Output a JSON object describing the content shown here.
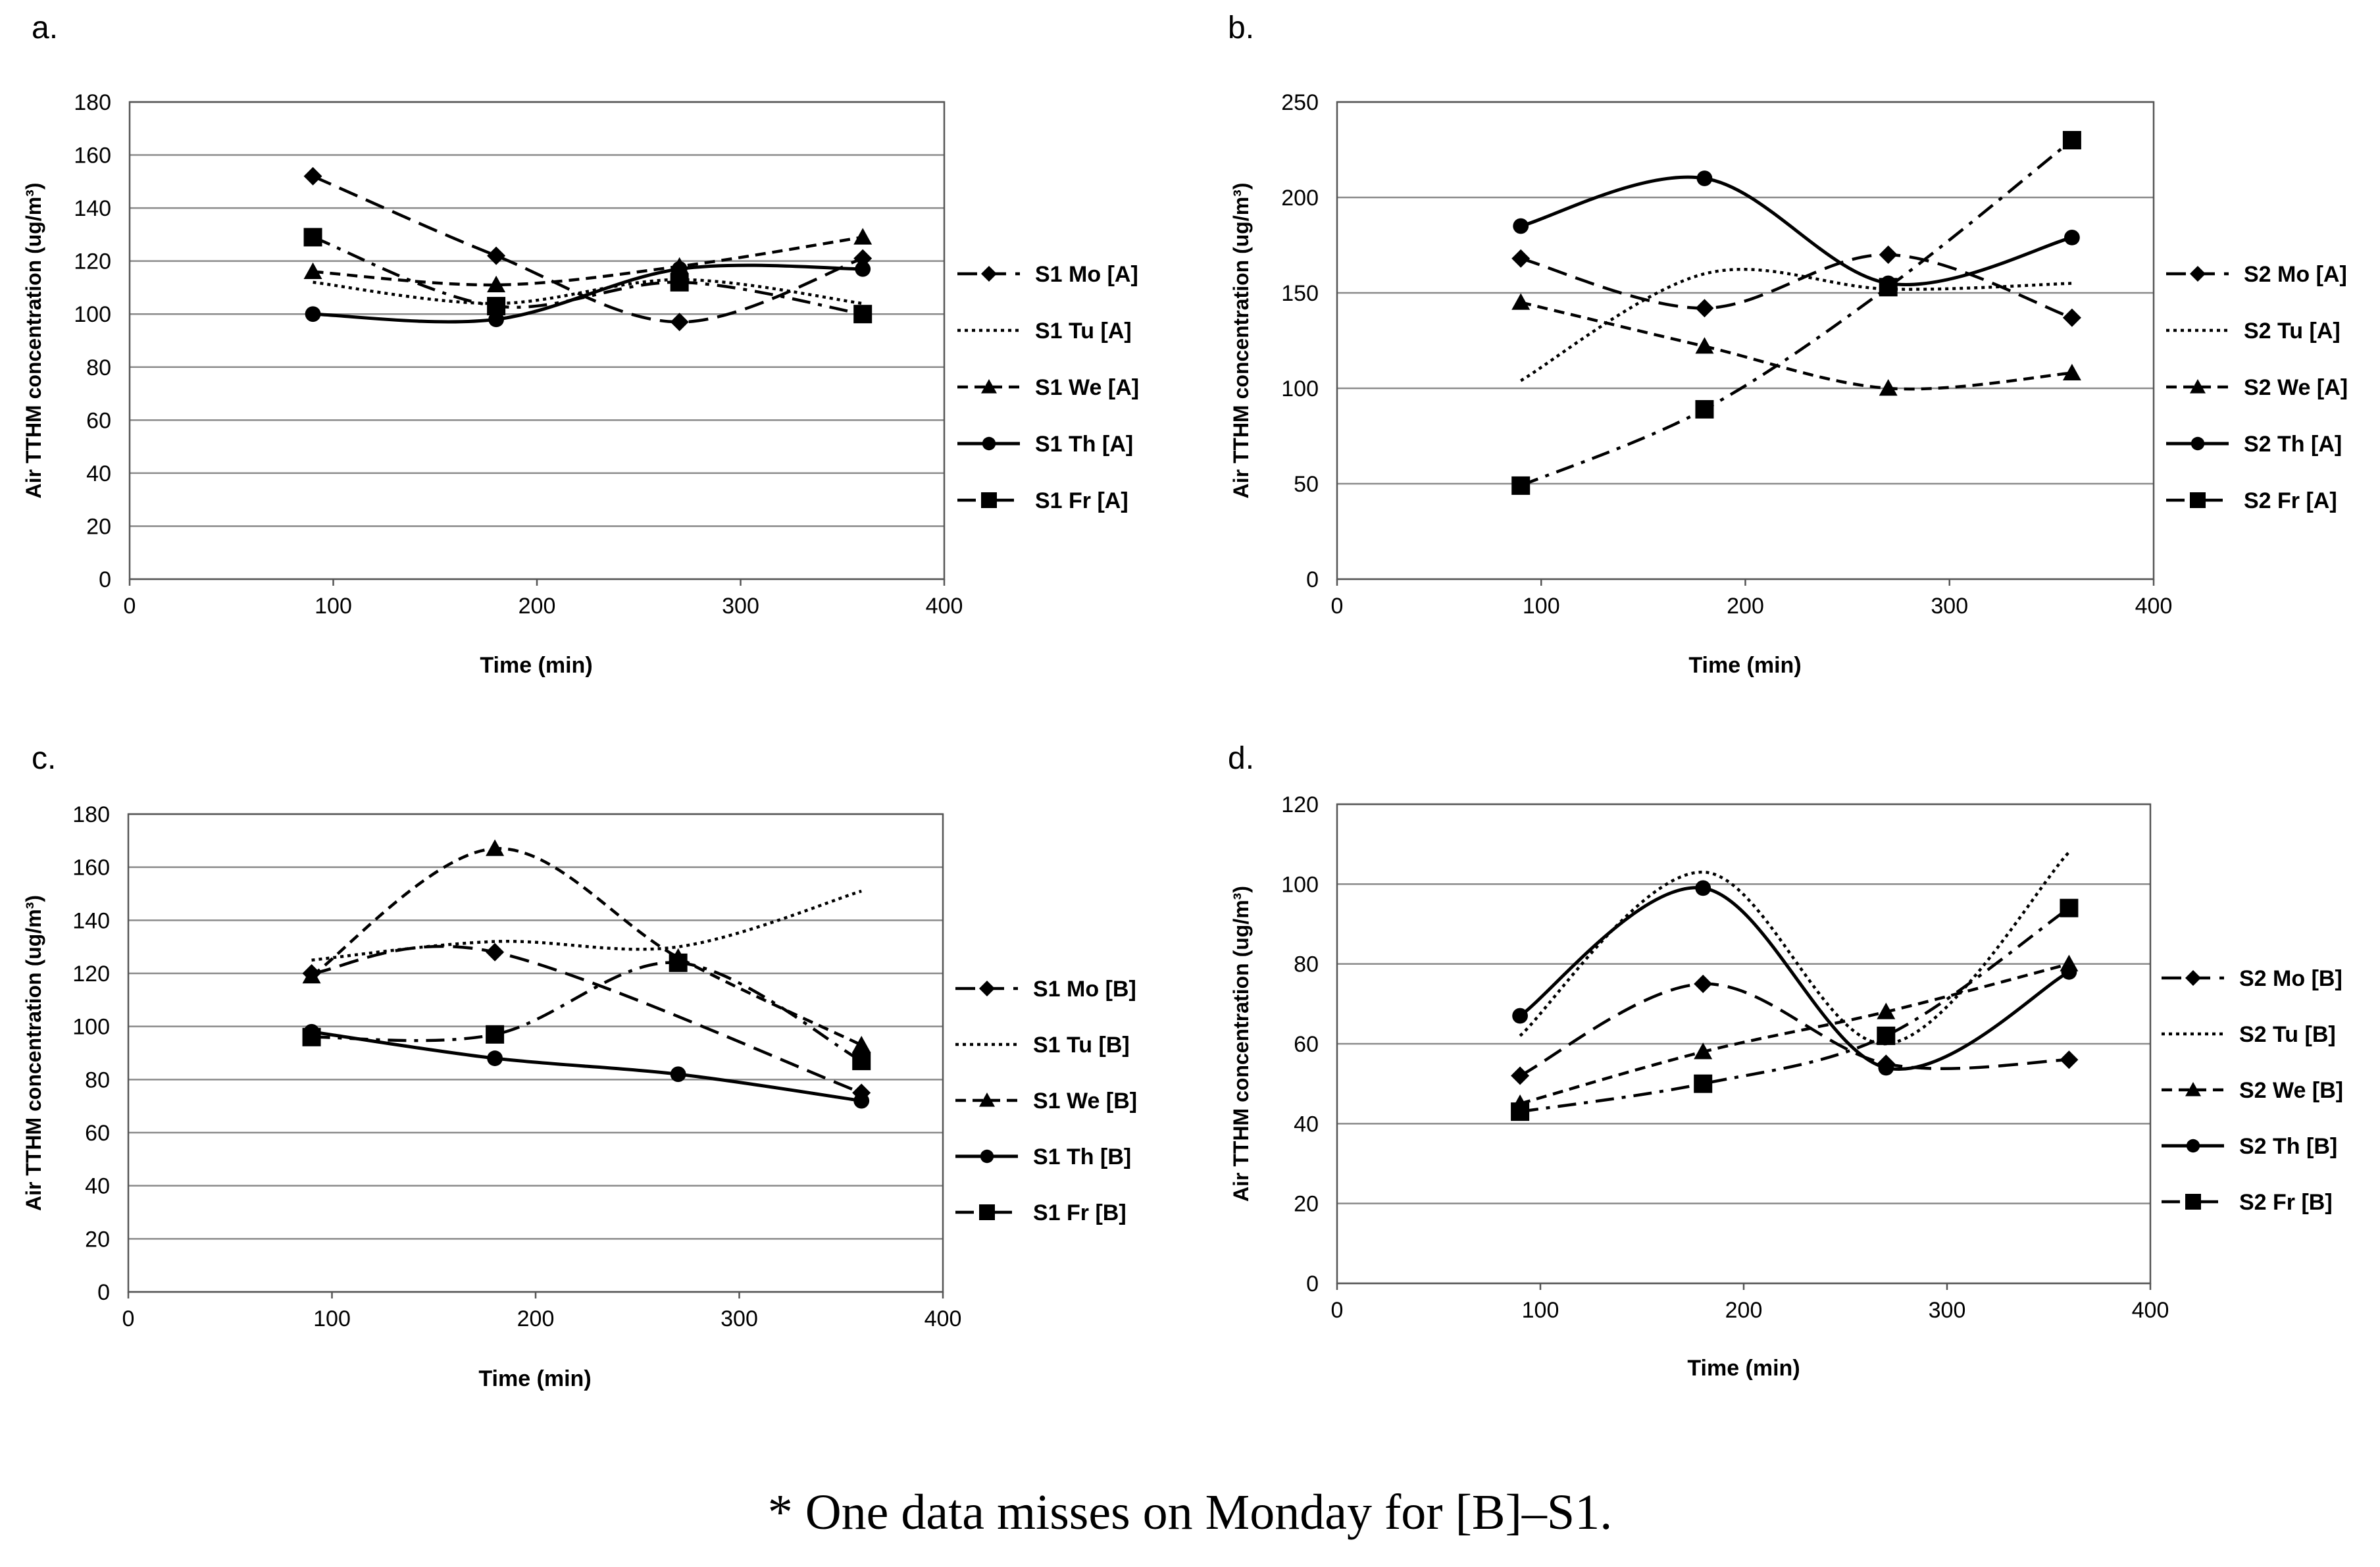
{
  "caption": "* One data misses on Monday for [B]–S1.",
  "y_axis_label": "Air TTHM concentration (ug/m³)",
  "x_axis_label": "Time (min)",
  "chart_data": [
    {
      "type": "line",
      "panel_label": "a.",
      "xlabel": "Time (min)",
      "ylabel": "Air TTHM concentration (ug/m³)",
      "xlim": [
        0,
        400
      ],
      "ylim": [
        0,
        180
      ],
      "x_ticks": [
        0,
        100,
        200,
        300,
        400
      ],
      "y_ticks": [
        0,
        20,
        40,
        60,
        80,
        100,
        120,
        140,
        160,
        180
      ],
      "grid": "horizontal",
      "legend_position": "right",
      "x": [
        90,
        180,
        270,
        360
      ],
      "series": [
        {
          "name": "S1 Mo [A]",
          "values": [
            152,
            122,
            97,
            121
          ],
          "marker": "diamond",
          "dash": "long-dash"
        },
        {
          "name": "S1 Tu [A]",
          "values": [
            112,
            104,
            113,
            104
          ],
          "marker": "none",
          "dash": "dot"
        },
        {
          "name": "S1 We [A]",
          "values": [
            116,
            111,
            118,
            129
          ],
          "marker": "triangle",
          "dash": "short-dash"
        },
        {
          "name": "S1 Th [A]",
          "values": [
            100,
            98,
            117,
            117
          ],
          "marker": "circle",
          "dash": "solid"
        },
        {
          "name": "S1 Fr [A]",
          "values": [
            129,
            103,
            112,
            100
          ],
          "marker": "square",
          "dash": "dash-dot"
        }
      ]
    },
    {
      "type": "line",
      "panel_label": "b.",
      "xlabel": "Time (min)",
      "ylabel": "Air TTHM concentration (ug/m³)",
      "xlim": [
        0,
        400
      ],
      "ylim": [
        0,
        250
      ],
      "x_ticks": [
        0,
        100,
        200,
        300,
        400
      ],
      "y_ticks": [
        0,
        50,
        100,
        150,
        200,
        250
      ],
      "grid": "horizontal",
      "legend_position": "right",
      "x": [
        90,
        180,
        270,
        360
      ],
      "series": [
        {
          "name": "S2 Mo [A]",
          "values": [
            168,
            142,
            170,
            137
          ],
          "marker": "diamond",
          "dash": "long-dash"
        },
        {
          "name": "S2 Tu [A]",
          "values": [
            104,
            160,
            152,
            155
          ],
          "marker": "none",
          "dash": "dot"
        },
        {
          "name": "S2 We [A]",
          "values": [
            145,
            122,
            100,
            108
          ],
          "marker": "triangle",
          "dash": "short-dash"
        },
        {
          "name": "S2 Th [A]",
          "values": [
            185,
            210,
            155,
            179
          ],
          "marker": "circle",
          "dash": "solid"
        },
        {
          "name": "S2 Fr [A]",
          "values": [
            49,
            89,
            153,
            230
          ],
          "marker": "square",
          "dash": "dash-dot"
        }
      ]
    },
    {
      "type": "line",
      "panel_label": "c.",
      "xlabel": "Time (min)",
      "ylabel": "Air TTHM concentration (ug/m³)",
      "xlim": [
        0,
        400
      ],
      "ylim": [
        0,
        180
      ],
      "x_ticks": [
        0,
        100,
        200,
        300,
        400
      ],
      "y_ticks": [
        0,
        20,
        40,
        60,
        80,
        100,
        120,
        140,
        160,
        180
      ],
      "grid": "horizontal",
      "legend_position": "right",
      "x": [
        90,
        180,
        270,
        360
      ],
      "series": [
        {
          "name": "S1 Mo [B]",
          "values": [
            120,
            128,
            null,
            75
          ],
          "marker": "diamond",
          "dash": "long-dash"
        },
        {
          "name": "S1 Tu [B]",
          "values": [
            125,
            132,
            130,
            151
          ],
          "marker": "none",
          "dash": "dot"
        },
        {
          "name": "S1 We [B]",
          "values": [
            119,
            167,
            126,
            93
          ],
          "marker": "triangle",
          "dash": "short-dash"
        },
        {
          "name": "S1 Th [B]",
          "values": [
            98,
            88,
            82,
            72
          ],
          "marker": "circle",
          "dash": "solid"
        },
        {
          "name": "S1 Fr [B]",
          "values": [
            96,
            97,
            124,
            87
          ],
          "marker": "square",
          "dash": "dash-dot"
        }
      ]
    },
    {
      "type": "line",
      "panel_label": "d.",
      "xlabel": "Time (min)",
      "ylabel": "Air TTHM concentration (ug/m³)",
      "xlim": [
        0,
        400
      ],
      "ylim": [
        0,
        120
      ],
      "x_ticks": [
        0,
        100,
        200,
        300,
        400
      ],
      "y_ticks": [
        0,
        20,
        40,
        60,
        80,
        100,
        120
      ],
      "grid": "horizontal",
      "legend_position": "right",
      "x": [
        90,
        180,
        270,
        360
      ],
      "series": [
        {
          "name": "S2 Mo [B]",
          "values": [
            52,
            75,
            55,
            56
          ],
          "marker": "diamond",
          "dash": "long-dash"
        },
        {
          "name": "S2 Tu [B]",
          "values": [
            62,
            103,
            60,
            108
          ],
          "marker": "none",
          "dash": "dot"
        },
        {
          "name": "S2 We [B]",
          "values": [
            45,
            58,
            68,
            80
          ],
          "marker": "triangle",
          "dash": "short-dash"
        },
        {
          "name": "S2 Th [B]",
          "values": [
            67,
            99,
            54,
            78
          ],
          "marker": "circle",
          "dash": "solid"
        },
        {
          "name": "S2 Fr [B]",
          "values": [
            43,
            50,
            62,
            94
          ],
          "marker": "square",
          "dash": "dash-dot"
        }
      ]
    }
  ]
}
